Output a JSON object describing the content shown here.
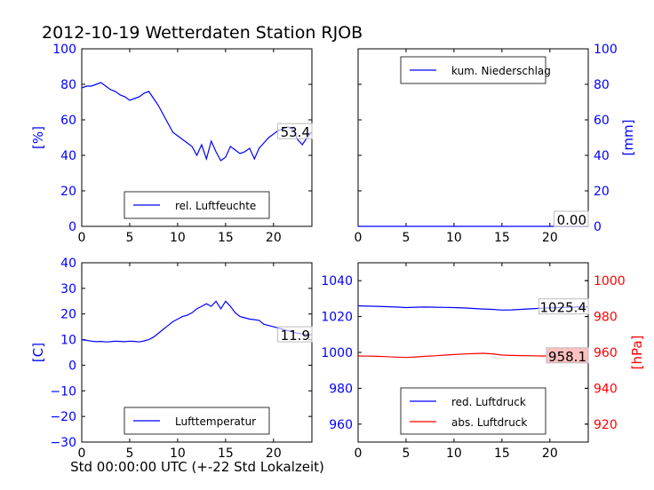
{
  "title": "2012-10-19 Wetterdaten Station RJOB",
  "shared_xlabel": "Std 00:00:00 UTC (+-22 Std Lokalzeit)",
  "colors": {
    "blue": "#0000ff",
    "red": "#ff0000",
    "label_box": "#ffc0c0",
    "axes": "#000000"
  },
  "chart_data": [
    {
      "id": "humidity",
      "type": "line",
      "xlim": [
        0,
        24
      ],
      "xticks": [
        0,
        5,
        10,
        15,
        20
      ],
      "ylim": [
        0,
        100
      ],
      "yticks": [
        0,
        20,
        40,
        60,
        80,
        100
      ],
      "ylabel": "[%]",
      "ylabel_side": "left",
      "legend": "bottom-center",
      "last_label": "53.4",
      "series": [
        {
          "name": "rel. Luftfeuchte",
          "color": "#0000ff",
          "x": [
            0,
            0.5,
            1,
            1.5,
            2,
            2.5,
            3,
            3.5,
            4,
            4.5,
            5,
            5.5,
            6,
            6.5,
            7,
            7.5,
            8,
            8.5,
            9,
            9.5,
            10,
            10.5,
            11,
            11.5,
            12,
            12.5,
            13,
            13.5,
            14,
            14.5,
            15,
            15.5,
            16,
            16.5,
            17,
            17.5,
            18,
            18.5,
            19,
            19.5,
            20,
            20.5,
            21,
            21.5,
            22,
            22.5,
            23,
            23.5,
            24
          ],
          "y": [
            78,
            79,
            79,
            80,
            81,
            79,
            77,
            76,
            74,
            73,
            71,
            72,
            73,
            75,
            76,
            72,
            68,
            63,
            58,
            53,
            51,
            49,
            47,
            45,
            40,
            46,
            38,
            48,
            42,
            37,
            39,
            45,
            43,
            41,
            42,
            44,
            38,
            44,
            47,
            50,
            52,
            54,
            55,
            56,
            55,
            49,
            46,
            50,
            53.4
          ]
        }
      ]
    },
    {
      "id": "precipitation",
      "type": "line",
      "xlim": [
        0,
        24
      ],
      "xticks": [
        0,
        5,
        10,
        15,
        20
      ],
      "ylim": [
        0,
        100
      ],
      "yticks": [
        0,
        20,
        40,
        60,
        80,
        100
      ],
      "ylabel": "[mm]",
      "ylabel_side": "right",
      "legend": "top-center",
      "last_label": "0.00",
      "series": [
        {
          "name": "kum. Niederschlag",
          "color": "#0000ff",
          "x": [
            0,
            24
          ],
          "y": [
            0,
            0
          ]
        }
      ]
    },
    {
      "id": "temperature",
      "type": "line",
      "xlim": [
        0,
        24
      ],
      "xticks": [
        0,
        5,
        10,
        15,
        20
      ],
      "ylim": [
        -30,
        40
      ],
      "yticks": [
        -30,
        -20,
        -10,
        0,
        10,
        20,
        30,
        40
      ],
      "ylabel": "[C]",
      "ylabel_side": "left",
      "legend": "bottom-center",
      "last_label": "11.9",
      "series": [
        {
          "name": "Lufttemperatur",
          "color": "#0000ff",
          "x": [
            0,
            0.5,
            1,
            1.5,
            2,
            2.5,
            3,
            3.5,
            4,
            4.5,
            5,
            5.5,
            6,
            6.5,
            7,
            7.5,
            8,
            8.5,
            9,
            9.5,
            10,
            10.5,
            11,
            11.5,
            12,
            12.5,
            13,
            13.5,
            14,
            14.5,
            15,
            15.5,
            16,
            16.5,
            17,
            17.5,
            18,
            18.5,
            19,
            19.5,
            20,
            20.5,
            21,
            21.5,
            22,
            22.5,
            23,
            23.5,
            24
          ],
          "y": [
            10,
            9.7,
            9.4,
            9.2,
            9.3,
            9.1,
            9.2,
            9.4,
            9.3,
            9.2,
            9.4,
            9.3,
            9.1,
            9.5,
            10,
            11,
            12.5,
            14,
            15.5,
            17,
            18,
            19,
            19.5,
            20.5,
            22,
            23,
            24,
            23,
            25,
            22,
            25,
            23,
            20.5,
            19,
            18.5,
            18,
            17.8,
            17.5,
            16,
            15.5,
            15,
            14.5,
            14,
            13.5,
            13,
            12.5,
            12.2,
            12,
            11.9
          ]
        }
      ]
    },
    {
      "id": "pressure",
      "type": "line",
      "xlim": [
        0,
        24
      ],
      "xticks": [
        0,
        5,
        10,
        15,
        20
      ],
      "ylim": [
        950,
        1050
      ],
      "yticks": [
        960,
        980,
        1000,
        1020,
        1040
      ],
      "y2lim": [
        910,
        1010
      ],
      "y2ticks": [
        920,
        940,
        960,
        980,
        1000
      ],
      "y2label": "[hPa]",
      "legend": "bottom-center",
      "series": [
        {
          "name": "red. Luftdruck",
          "color": "#0000ff",
          "axis": "left",
          "last_label": "1025.4",
          "x": [
            0,
            1,
            2,
            3,
            4,
            5,
            6,
            7,
            8,
            9,
            10,
            11,
            12,
            13,
            14,
            15,
            16,
            17,
            18,
            19,
            20,
            21,
            22,
            23,
            24
          ],
          "y": [
            1026,
            1025.8,
            1025.7,
            1025.5,
            1025.3,
            1025,
            1025.2,
            1025.3,
            1025.2,
            1025.1,
            1025,
            1024.8,
            1024.5,
            1024.2,
            1024,
            1023.6,
            1023.7,
            1024,
            1024.3,
            1024.6,
            1024.8,
            1025,
            1025.2,
            1025.3,
            1025.4
          ]
        },
        {
          "name": "abs. Luftdruck",
          "color": "#ff0000",
          "axis": "right",
          "last_label": "958.1",
          "x": [
            0,
            1,
            2,
            3,
            4,
            5,
            6,
            7,
            8,
            9,
            10,
            11,
            12,
            13,
            14,
            15,
            16,
            17,
            18,
            19,
            20,
            21,
            22,
            23,
            24
          ],
          "y": [
            958,
            957.9,
            957.8,
            957.6,
            957.4,
            957.2,
            957.5,
            957.8,
            958.1,
            958.5,
            958.8,
            959.1,
            959.3,
            959.5,
            959.2,
            958.5,
            958.3,
            958.2,
            958.1,
            958,
            958,
            958.1,
            958.1,
            958.1,
            958.1
          ]
        }
      ]
    }
  ]
}
